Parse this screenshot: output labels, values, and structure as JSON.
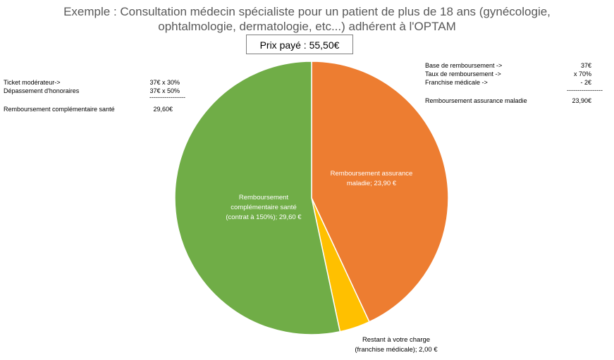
{
  "title_line1": "Exemple : Consultation médecin spécialiste pour un patient de plus de 18 ans (gynécologie,",
  "title_line2": "ophtalmologie, dermatologie, etc...) adhérent à l'OPTAM",
  "price_box": "Prix payé : 55,50€",
  "left_note": {
    "row1_label": "Ticket modérateur->",
    "row1_value": "37€ x 30%",
    "row2_label": "Dépassement d'honoraires",
    "row2_value": "37€ x 50%",
    "separator": "-----------------",
    "total_label": "Remboursement complémentaire santé",
    "total_value": "29,60€"
  },
  "right_note": {
    "row1_label": "Base de remboursement ->",
    "row1_value": "37€",
    "row2_label": "Taux de remboursement ->",
    "row2_value": "x 70%",
    "row3_label": "Franchise médicale ->",
    "row3_value": "- 2€",
    "separator": "-----------------",
    "total_label": "Remboursement assurance maladie",
    "total_value": "23,90€"
  },
  "chart_data": {
    "type": "pie",
    "title": "Exemple : Consultation médecin spécialiste pour un patient de plus de 18 ans (gynécologie, ophtalmologie, dermatologie, etc...) adhérent à l'OPTAM",
    "slices": [
      {
        "label_lines": [
          "Remboursement assurance",
          "maladie;   23,90 €"
        ],
        "value": 23.9,
        "color": "#ED7D31"
      },
      {
        "label_lines": [
          "Restant à votre charge",
          "(franchise médicale);   2,00 €"
        ],
        "value": 2.0,
        "color": "#FFC000"
      },
      {
        "label_lines": [
          "Remboursement",
          "complémentaire santé",
          "(contrat à 150%);   29,60 €"
        ],
        "value": 29.6,
        "color": "#70AD47"
      }
    ]
  }
}
